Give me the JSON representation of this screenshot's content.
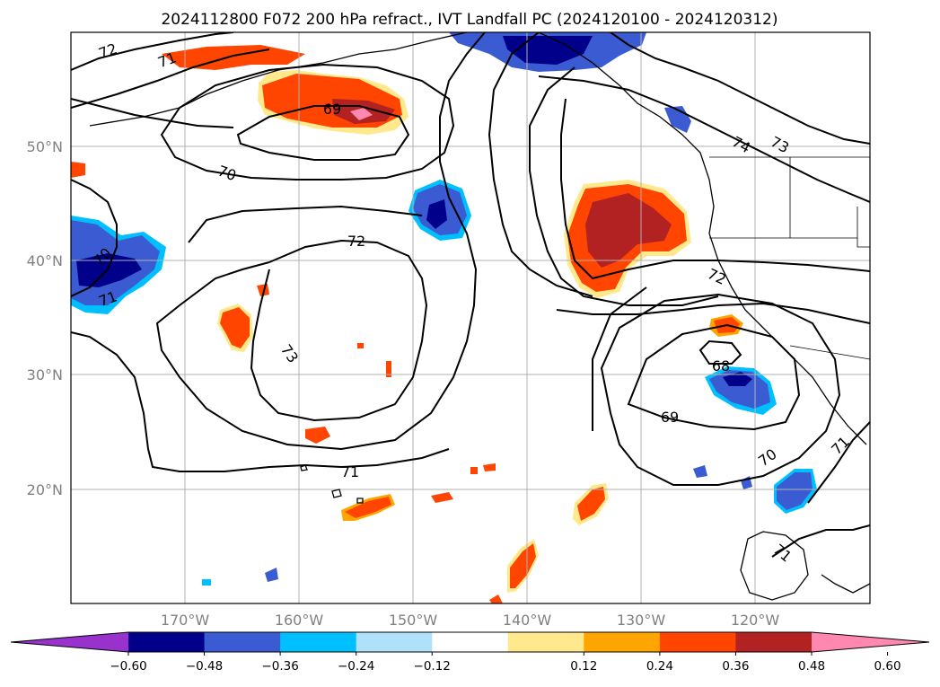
{
  "title": "2024112800 F072 200 hPa refract., IVT Landfall PC (2024120100 - 2024120312)",
  "map": {
    "lon_range": [
      -180,
      -110
    ],
    "lat_range": [
      10,
      60
    ],
    "lon_ticks": [
      {
        "lon": -170,
        "label": "170°W"
      },
      {
        "lon": -160,
        "label": "160°W"
      },
      {
        "lon": -150,
        "label": "150°W"
      },
      {
        "lon": -140,
        "label": "140°W"
      },
      {
        "lon": -130,
        "label": "130°W"
      },
      {
        "lon": -120,
        "label": "120°W"
      }
    ],
    "lat_ticks": [
      {
        "lat": 50,
        "label": "50°N"
      },
      {
        "lat": 40,
        "label": "40°N"
      },
      {
        "lat": 30,
        "label": "30°N"
      },
      {
        "lat": 20,
        "label": "20°N"
      }
    ],
    "gridlines": true,
    "contour_labels": [
      "72",
      "71",
      "69",
      "70",
      "72",
      "73",
      "71",
      "70",
      "71",
      "68",
      "69",
      "72",
      "74",
      "73",
      "70",
      "71",
      "71"
    ]
  },
  "colorbar": {
    "ticks": [
      "−0.60",
      "−0.48",
      "−0.36",
      "−0.24",
      "−0.12",
      "0.12",
      "0.24",
      "0.36",
      "0.48",
      "0.60"
    ],
    "colors": [
      "#9932cc",
      "#00008b",
      "#3a5bd1",
      "#00bfff",
      "#afe1fa",
      "#ffffff",
      "#ffe98c",
      "#ffa500",
      "#ff4500",
      "#b22222",
      "#ff88b0"
    ]
  },
  "colors": {
    "blue_dark": "#00008b",
    "blue_mid": "#3a5bd1",
    "blue_light": "#00bfff",
    "orange_red": "#ff4500",
    "dark_red": "#b22222",
    "pink": "#ff88b0",
    "yellow": "#ffe98c",
    "orange": "#ffa500"
  }
}
